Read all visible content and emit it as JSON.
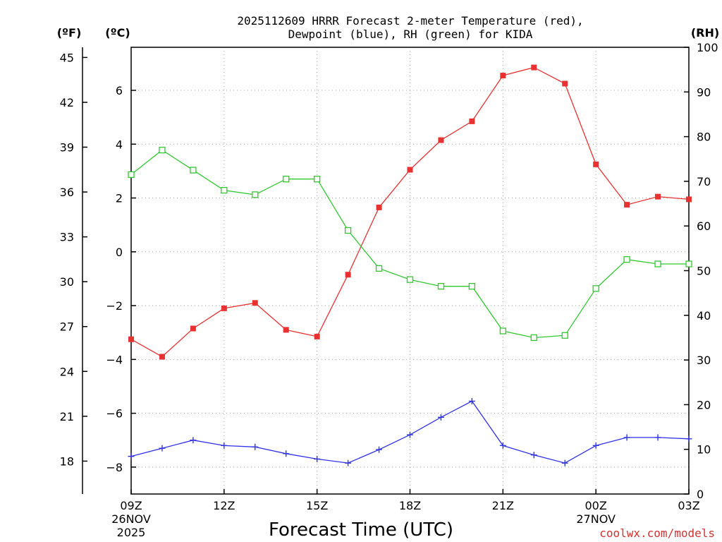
{
  "chart_data": {
    "type": "line",
    "title_line1": "2025112609 HRRR Forecast 2-meter Temperature (red),",
    "title_line2": "Dewpoint (blue), RH (green) for KIDA",
    "xlabel": "Forecast Time (UTC)",
    "credit": "coolwx.com/models",
    "left_unit_f": "(ºF)",
    "left_unit_c": "(ºC)",
    "right_unit": "(RH)",
    "x_hours": [
      0,
      1,
      2,
      3,
      4,
      5,
      6,
      7,
      8,
      9,
      10,
      11,
      12,
      13,
      14,
      15,
      16,
      17,
      18
    ],
    "x_range": [
      0,
      18
    ],
    "c_range": [
      -9,
      7.6
    ],
    "rh_range": [
      0,
      100
    ],
    "f_ticks": [
      "45",
      "42",
      "39",
      "36",
      "33",
      "30",
      "27",
      "24",
      "21",
      "18"
    ],
    "c_ticks": [
      "6",
      "4",
      "2",
      "0",
      "−2",
      "−4",
      "−6",
      "−8"
    ],
    "rh_ticks": [
      "100",
      "90",
      "80",
      "70",
      "60",
      "50",
      "40",
      "30",
      "20",
      "10",
      "0"
    ],
    "x_ticks": [
      {
        "hour": 0,
        "label": "09Z",
        "sub1": "26NOV",
        "sub2": "2025"
      },
      {
        "hour": 3,
        "label": "12Z",
        "sub1": "",
        "sub2": ""
      },
      {
        "hour": 6,
        "label": "15Z",
        "sub1": "",
        "sub2": ""
      },
      {
        "hour": 9,
        "label": "18Z",
        "sub1": "",
        "sub2": ""
      },
      {
        "hour": 12,
        "label": "21Z",
        "sub1": "",
        "sub2": ""
      },
      {
        "hour": 15,
        "label": "00Z",
        "sub1": "27NOV",
        "sub2": ""
      },
      {
        "hour": 18,
        "label": "03Z",
        "sub1": "",
        "sub2": ""
      }
    ],
    "series": [
      {
        "name": "2-meter Temperature (°C)",
        "color": "#e83232",
        "marker": "filled-square",
        "axis": "c",
        "values": [
          -3.25,
          -3.9,
          -2.85,
          -2.1,
          -1.9,
          -2.9,
          -3.15,
          -0.85,
          1.65,
          3.05,
          4.15,
          4.85,
          6.55,
          6.85,
          6.25,
          3.25,
          1.75,
          2.05,
          1.95
        ]
      },
      {
        "name": "Dewpoint (°C)",
        "color": "#3232e8",
        "marker": "plus",
        "axis": "c",
        "values": [
          -7.6,
          -7.3,
          -7.0,
          -7.2,
          -7.25,
          -7.5,
          -7.7,
          -7.85,
          -7.35,
          -6.8,
          -6.15,
          -5.55,
          -7.2,
          -7.55,
          -7.85,
          -7.2,
          -6.9,
          -6.9,
          -6.95
        ]
      },
      {
        "name": "RH (%)",
        "color": "#32c832",
        "marker": "open-square",
        "axis": "rh",
        "values": [
          71.5,
          77,
          72.5,
          68,
          67,
          70.5,
          70.5,
          59,
          50.5,
          48,
          46.5,
          46.5,
          36.5,
          35,
          35.5,
          46,
          52.5,
          51.5,
          51.5
        ]
      }
    ]
  }
}
